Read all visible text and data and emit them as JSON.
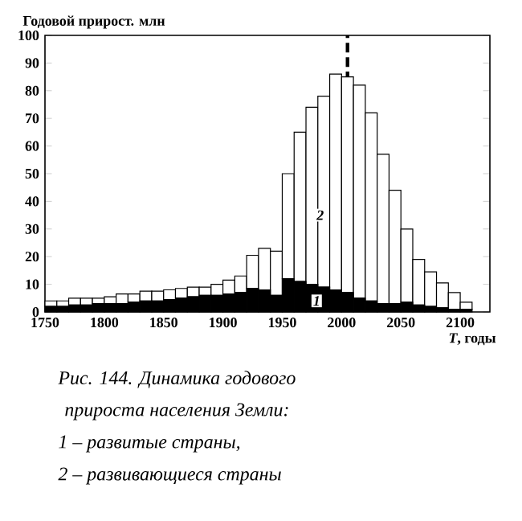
{
  "chart_data": {
    "type": "bar",
    "stacked": true,
    "ylabel": "Годовой прирост. млн",
    "xlabel": "*T*, годы",
    "x": [
      1755,
      1765,
      1775,
      1785,
      1795,
      1805,
      1815,
      1825,
      1835,
      1845,
      1855,
      1865,
      1875,
      1885,
      1895,
      1905,
      1915,
      1925,
      1935,
      1945,
      1955,
      1965,
      1975,
      1985,
      1995,
      2005,
      2015,
      2025,
      2035,
      2045,
      2055,
      2065,
      2075,
      2085,
      2095,
      2105
    ],
    "series": [
      {
        "color": "#000000",
        "values": [
          2,
          2,
          2.5,
          2.5,
          3,
          3,
          3,
          3.5,
          4,
          4,
          4.5,
          5,
          5.5,
          6,
          6,
          6.5,
          7,
          8.5,
          8,
          6,
          12,
          11,
          10,
          9,
          8,
          7,
          5,
          4,
          3,
          3,
          3.5,
          2.5,
          2,
          1.5,
          1,
          1
        ]
      },
      {
        "color": "#ffffff",
        "values": [
          2,
          2,
          2.5,
          2.5,
          2,
          2.5,
          3.5,
          3,
          3.5,
          3.5,
          3.5,
          3.5,
          3.5,
          3,
          4,
          5,
          6,
          12,
          15,
          16,
          38,
          54,
          64,
          69,
          78,
          78,
          77,
          68,
          54,
          41,
          26.5,
          16.5,
          12.5,
          9,
          6,
          2.5
        ]
      }
    ],
    "xlim": [
      1750,
      2125
    ],
    "ylim": [
      0,
      100
    ],
    "xticks": [
      1750,
      1800,
      1850,
      1900,
      1950,
      2000,
      2050,
      2100
    ],
    "yticks": [
      0,
      10,
      20,
      30,
      40,
      50,
      60,
      70,
      80,
      90,
      100
    ],
    "ref_lines": [
      {
        "axis": "x",
        "value": 2005,
        "line_style": "dashed",
        "color": "#000000"
      }
    ],
    "annotations": [
      {
        "text": "2",
        "x": 1982,
        "y": 35
      },
      {
        "text": "1",
        "x": 1979,
        "y": 4
      },
      "Рис. 144. Динамика годового",
      "прироста населения Земли:",
      "1 – развитые страны,",
      "2 – развивающиеся страны"
    ],
    "grid": false
  }
}
